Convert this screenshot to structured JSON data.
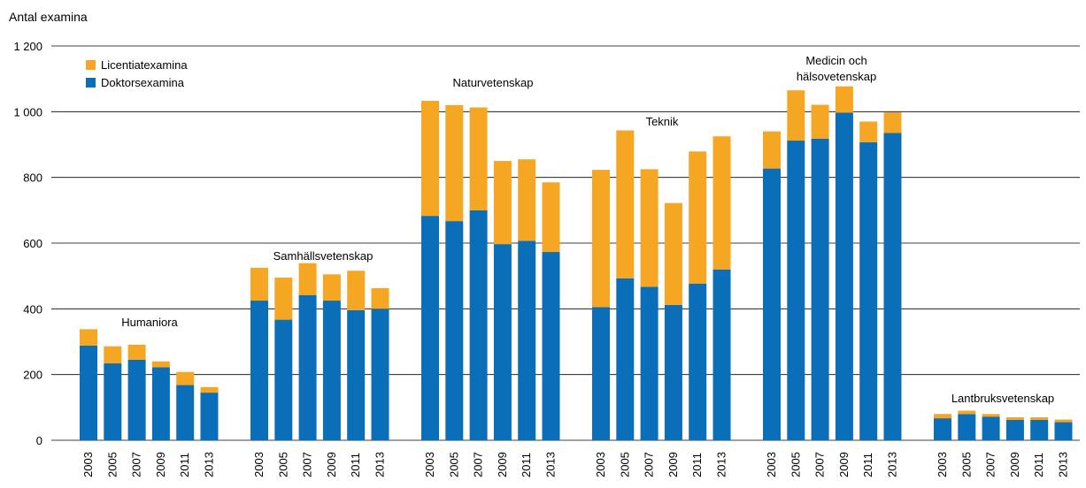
{
  "chart_data": {
    "type": "bar",
    "stacked": true,
    "ylabel": "Antal examina",
    "ylim": [
      0,
      1200
    ],
    "yticks": [
      0,
      200,
      400,
      600,
      800,
      1000,
      1200
    ],
    "ytick_labels": [
      "0",
      "200",
      "400",
      "600",
      "800",
      "1 000",
      "1 200"
    ],
    "grid": true,
    "legend_position": "top-left",
    "years": [
      "2003",
      "2005",
      "2007",
      "2009",
      "2011",
      "2013"
    ],
    "series": [
      {
        "name": "Licentiatexamina",
        "color": "#f5a623"
      },
      {
        "name": "Doktorsexamina",
        "color": "#0a6fb8"
      }
    ],
    "groups": [
      {
        "label": [
          "Humaniora"
        ],
        "doktor": [
          288,
          234,
          245,
          222,
          168,
          145
        ],
        "licentiat": [
          50,
          52,
          46,
          18,
          40,
          17
        ]
      },
      {
        "label": [
          "Samhällsvetenskap"
        ],
        "doktor": [
          425,
          367,
          442,
          425,
          396,
          400
        ],
        "licentiat": [
          100,
          128,
          97,
          80,
          120,
          63
        ]
      },
      {
        "label": [
          "Naturvetenskap"
        ],
        "doktor": [
          683,
          667,
          700,
          597,
          607,
          573
        ],
        "licentiat": [
          350,
          353,
          313,
          253,
          248,
          212
        ]
      },
      {
        "label": [
          "Teknik"
        ],
        "doktor": [
          405,
          493,
          467,
          412,
          477,
          520
        ],
        "licentiat": [
          418,
          450,
          358,
          310,
          402,
          405
        ]
      },
      {
        "label": [
          "Medicin och",
          "hälsovetenskap"
        ],
        "doktor": [
          827,
          912,
          918,
          997,
          907,
          935
        ],
        "licentiat": [
          113,
          153,
          103,
          80,
          63,
          63
        ]
      },
      {
        "label": [
          "Lantbruksvetenskap"
        ],
        "doktor": [
          67,
          80,
          72,
          62,
          62,
          55
        ],
        "licentiat": [
          13,
          10,
          8,
          8,
          8,
          8
        ]
      }
    ]
  }
}
